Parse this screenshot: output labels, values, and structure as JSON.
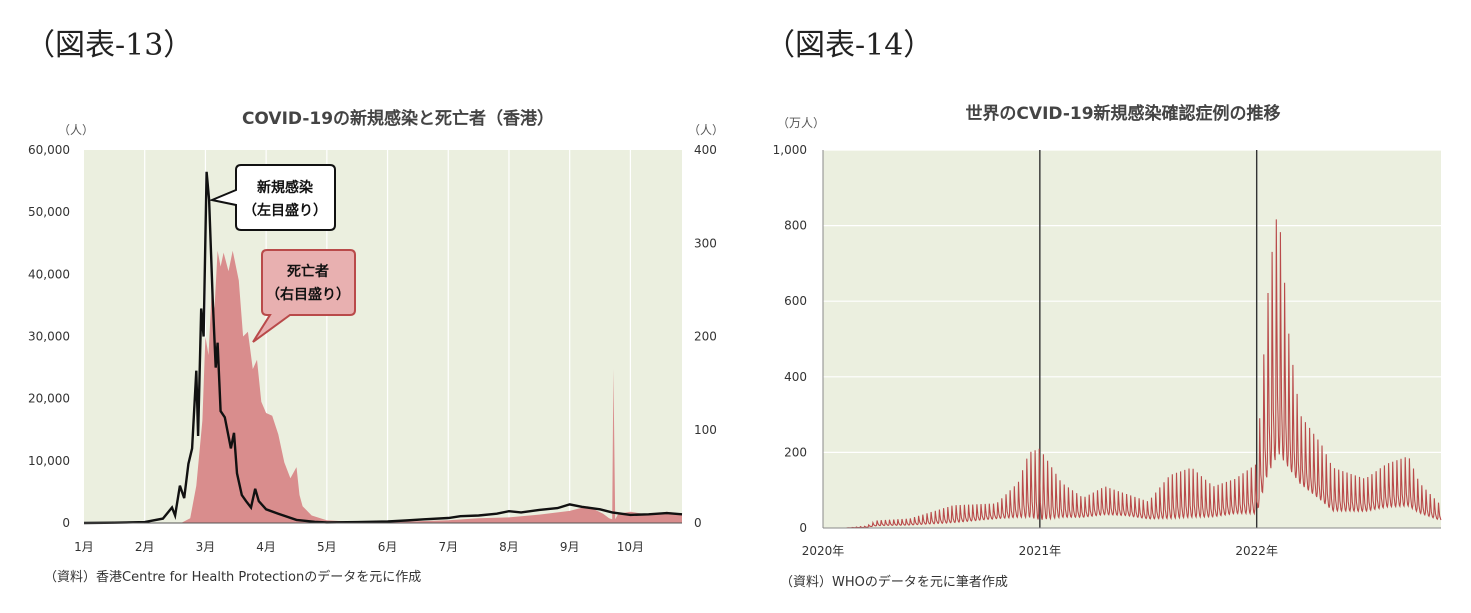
{
  "left_panel": {
    "figure_label": "（図表-13）",
    "source_note": "（資料）香港Centre for Health Protectionのデータを元に作成",
    "callouts": {
      "cases_line1": "新規感染",
      "cases_line2": "（左目盛り）",
      "deaths_line1": "死亡者",
      "deaths_line2": "（右目盛り）"
    }
  },
  "right_panel": {
    "figure_label": "（図表-14）",
    "source_note": "（資料）WHOのデータを元に筆者作成"
  },
  "colors": {
    "plot_bg": "#ebefdf",
    "cases_line": "#111111",
    "deaths_area": "#d98d8d",
    "world_line": "#b94a4a",
    "grid": "#ffffff",
    "callout_cases_fill": "#ffffff",
    "callout_deaths_fill": "#e8b0b0",
    "callout_deaths_border": "#b94a4a"
  },
  "chart_data": [
    {
      "type": "line",
      "title": "COVID-19の新規感染と死亡者（香港）",
      "ylabel": "（人）",
      "y2label": "（人）",
      "ylim": [
        0,
        60000
      ],
      "y2lim": [
        0,
        400
      ],
      "yticks": [
        "0",
        "10,000",
        "20,000",
        "30,000",
        "40,000",
        "50,000",
        "60,000"
      ],
      "y2ticks": [
        "0",
        "100",
        "200",
        "300",
        "400"
      ],
      "xticks": [
        "1月",
        "2月",
        "3月",
        "4月",
        "5月",
        "6月",
        "7月",
        "8月",
        "9月",
        "10月"
      ],
      "x_unit": "month (1 = 1月)",
      "xlim": [
        1,
        10.85
      ],
      "grid": "vertical",
      "series": [
        {
          "name": "新規感染",
          "axis": "left",
          "style": "line",
          "points": [
            [
              1,
              0
            ],
            [
              1.5,
              50
            ],
            [
              2,
              150
            ],
            [
              2.3,
              700
            ],
            [
              2.45,
              2500
            ],
            [
              2.5,
              1200
            ],
            [
              2.58,
              6000
            ],
            [
              2.65,
              4000
            ],
            [
              2.72,
              9500
            ],
            [
              2.78,
              12000
            ],
            [
              2.85,
              24500
            ],
            [
              2.88,
              14000
            ],
            [
              2.93,
              34500
            ],
            [
              2.97,
              30000
            ],
            [
              3.02,
              56500
            ],
            [
              3.06,
              52000
            ],
            [
              3.12,
              36000
            ],
            [
              3.17,
              25000
            ],
            [
              3.2,
              29000
            ],
            [
              3.25,
              18000
            ],
            [
              3.32,
              17000
            ],
            [
              3.42,
              12000
            ],
            [
              3.47,
              14500
            ],
            [
              3.52,
              8000
            ],
            [
              3.6,
              4500
            ],
            [
              3.67,
              3500
            ],
            [
              3.75,
              2500
            ],
            [
              3.82,
              5500
            ],
            [
              3.88,
              3500
            ],
            [
              4,
              2200
            ],
            [
              4.2,
              1500
            ],
            [
              4.5,
              500
            ],
            [
              4.8,
              200
            ],
            [
              5,
              100
            ],
            [
              5.5,
              150
            ],
            [
              6,
              250
            ],
            [
              6.3,
              400
            ],
            [
              6.6,
              600
            ],
            [
              7,
              800
            ],
            [
              7.2,
              1100
            ],
            [
              7.5,
              1200
            ],
            [
              7.8,
              1500
            ],
            [
              8,
              1900
            ],
            [
              8.2,
              1700
            ],
            [
              8.5,
              2100
            ],
            [
              8.8,
              2400
            ],
            [
              9,
              3000
            ],
            [
              9.2,
              2600
            ],
            [
              9.5,
              2200
            ],
            [
              9.7,
              1700
            ],
            [
              10,
              1300
            ],
            [
              10.3,
              1400
            ],
            [
              10.6,
              1600
            ],
            [
              10.85,
              1400
            ]
          ]
        },
        {
          "name": "死亡者",
          "axis": "right",
          "style": "area",
          "points": [
            [
              1,
              0
            ],
            [
              2,
              0
            ],
            [
              2.6,
              0
            ],
            [
              2.75,
              5
            ],
            [
              2.85,
              40
            ],
            [
              2.95,
              110
            ],
            [
              3.0,
              200
            ],
            [
              3.05,
              180
            ],
            [
              3.1,
              245
            ],
            [
              3.15,
              230
            ],
            [
              3.2,
              292
            ],
            [
              3.25,
              275
            ],
            [
              3.3,
              290
            ],
            [
              3.38,
              270
            ],
            [
              3.45,
              292
            ],
            [
              3.55,
              260
            ],
            [
              3.62,
              200
            ],
            [
              3.7,
              205
            ],
            [
              3.78,
              165
            ],
            [
              3.85,
              175
            ],
            [
              3.92,
              130
            ],
            [
              4.0,
              118
            ],
            [
              4.1,
              115
            ],
            [
              4.2,
              95
            ],
            [
              4.3,
              65
            ],
            [
              4.4,
              48
            ],
            [
              4.5,
              60
            ],
            [
              4.55,
              30
            ],
            [
              4.6,
              18
            ],
            [
              4.75,
              8
            ],
            [
              5.0,
              3
            ],
            [
              5.5,
              1
            ],
            [
              6.0,
              1
            ],
            [
              7.0,
              3
            ],
            [
              7.5,
              5
            ],
            [
              8.0,
              6
            ],
            [
              8.5,
              9
            ],
            [
              9.0,
              13
            ],
            [
              9.3,
              18
            ],
            [
              9.55,
              10
            ],
            [
              9.65,
              5
            ],
            [
              9.7,
              4
            ],
            [
              9.72,
              165
            ],
            [
              9.75,
              4
            ],
            [
              9.8,
              10
            ],
            [
              10.0,
              12
            ],
            [
              10.3,
              9
            ],
            [
              10.6,
              12
            ],
            [
              10.85,
              10
            ]
          ]
        }
      ]
    },
    {
      "type": "line",
      "title": "世界のCVID-19新規感染確認症例の推移",
      "ylabel": "（万人）",
      "ylim": [
        0,
        1000
      ],
      "yticks": [
        "0",
        "200",
        "400",
        "600",
        "800",
        "1,000"
      ],
      "xticks": [
        "2020年",
        "2021年",
        "2022年"
      ],
      "x_unit": "year (decimal)",
      "xlim": [
        2020,
        2022.85
      ],
      "series": [
        {
          "name": "",
          "style": "line",
          "oscillating": true,
          "upper_envelope": [
            [
              2020,
              0
            ],
            [
              2020.1,
              0
            ],
            [
              2020.2,
              5
            ],
            [
              2020.25,
              20
            ],
            [
              2020.4,
              25
            ],
            [
              2020.6,
              60
            ],
            [
              2020.8,
              65
            ],
            [
              2020.9,
              120
            ],
            [
              2020.95,
              200
            ],
            [
              2021.0,
              210
            ],
            [
              2021.1,
              120
            ],
            [
              2021.2,
              80
            ],
            [
              2021.3,
              110
            ],
            [
              2021.4,
              90
            ],
            [
              2021.5,
              70
            ],
            [
              2021.6,
              140
            ],
            [
              2021.7,
              160
            ],
            [
              2021.8,
              110
            ],
            [
              2021.9,
              130
            ],
            [
              2022.0,
              170
            ],
            [
              2022.05,
              610
            ],
            [
              2022.08,
              780
            ],
            [
              2022.1,
              850
            ],
            [
              2022.15,
              500
            ],
            [
              2022.2,
              300
            ],
            [
              2022.3,
              220
            ],
            [
              2022.35,
              160
            ],
            [
              2022.5,
              130
            ],
            [
              2022.6,
              170
            ],
            [
              2022.7,
              190
            ],
            [
              2022.75,
              120
            ],
            [
              2022.85,
              60
            ]
          ],
          "lower_envelope": [
            [
              2020,
              0
            ],
            [
              2020.1,
              0
            ],
            [
              2020.2,
              2
            ],
            [
              2020.25,
              8
            ],
            [
              2020.4,
              10
            ],
            [
              2020.6,
              20
            ],
            [
              2020.8,
              30
            ],
            [
              2020.9,
              40
            ],
            [
              2020.95,
              50
            ],
            [
              2021.0,
              45
            ],
            [
              2021.1,
              40
            ],
            [
              2021.2,
              35
            ],
            [
              2021.3,
              45
            ],
            [
              2021.4,
              40
            ],
            [
              2021.5,
              30
            ],
            [
              2021.6,
              40
            ],
            [
              2021.7,
              45
            ],
            [
              2021.8,
              40
            ],
            [
              2021.9,
              50
            ],
            [
              2022.0,
              55
            ],
            [
              2022.05,
              200
            ],
            [
              2022.08,
              250
            ],
            [
              2022.1,
              280
            ],
            [
              2022.15,
              200
            ],
            [
              2022.2,
              140
            ],
            [
              2022.3,
              90
            ],
            [
              2022.35,
              60
            ],
            [
              2022.5,
              55
            ],
            [
              2022.6,
              70
            ],
            [
              2022.7,
              75
            ],
            [
              2022.75,
              50
            ],
            [
              2022.85,
              25
            ]
          ]
        }
      ]
    }
  ]
}
